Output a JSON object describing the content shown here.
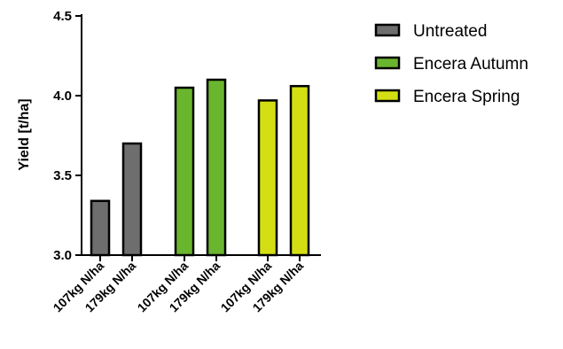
{
  "chart_data": {
    "type": "bar",
    "title": "",
    "xlabel": "",
    "ylabel": "Yield [t/ha]",
    "ylim": [
      3.0,
      4.5
    ],
    "yticks": [
      "3.0",
      "3.5",
      "4.0",
      "4.5"
    ],
    "grid": false,
    "legend_position": "top-right",
    "bar_groups": [
      {
        "name": "Untreated",
        "color": "#6d6e6d",
        "bars": [
          {
            "category": "107kg N/ha",
            "value": 3.34
          },
          {
            "category": "179kg N/ha",
            "value": 3.7
          }
        ]
      },
      {
        "name": "Encera Autumn",
        "color": "#6ab52e",
        "bars": [
          {
            "category": "107kg N/ha",
            "value": 4.05
          },
          {
            "category": "179kg N/ha",
            "value": 4.1
          }
        ]
      },
      {
        "name": "Encera Spring",
        "color": "#d4df13",
        "bars": [
          {
            "category": "107kg N/ha",
            "value": 3.97
          },
          {
            "category": "179kg N/ha",
            "value": 4.06
          }
        ]
      }
    ]
  }
}
